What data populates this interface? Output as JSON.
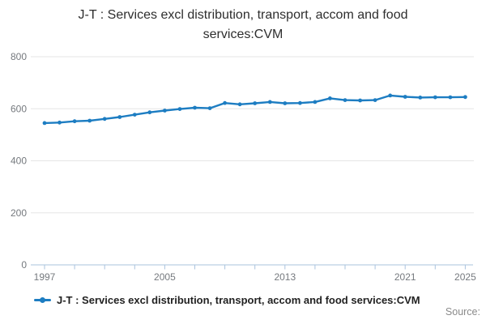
{
  "title": {
    "line1": "J-T : Services excl distribution, transport, accom and food",
    "line2": "services:CVM"
  },
  "legend": {
    "label": "J-T : Services excl distribution, transport, accom and food services:CVM"
  },
  "source_label": "Source:",
  "colors": {
    "line": "#1d7dc2",
    "grid": "#e6e6e6",
    "axis": "#aac3de",
    "tick_text": "#75797e",
    "title_text": "#2e2e2e",
    "legend_text": "#222222",
    "source_text": "#8a8a8a"
  },
  "chart_data": {
    "type": "line",
    "title": "J-T : Services excl distribution, transport, accom and food services:CVM",
    "x": [
      1997,
      1998,
      1999,
      2000,
      2001,
      2002,
      2003,
      2004,
      2005,
      2006,
      2007,
      2008,
      2009,
      2010,
      2011,
      2012,
      2013,
      2014,
      2015,
      2016,
      2017,
      2018,
      2019,
      2020,
      2021,
      2022,
      2023,
      2024,
      2025
    ],
    "series": [
      {
        "name": "J-T : Services excl distribution, transport, accom and food services:CVM",
        "values": [
          545,
          547,
          552,
          554,
          561,
          568,
          577,
          586,
          593,
          599,
          604,
          602,
          622,
          617,
          621,
          626,
          621,
          622,
          626,
          640,
          633,
          632,
          633,
          651,
          646,
          643,
          644,
          644,
          645
        ]
      }
    ],
    "xlabel": "",
    "ylabel": "",
    "ylim": [
      0,
      800
    ],
    "xlim": [
      1997,
      2025
    ],
    "y_ticks": [
      0,
      200,
      400,
      600,
      800
    ],
    "x_tick_marks": [
      1997,
      1999,
      2001,
      2003,
      2005,
      2007,
      2009,
      2011,
      2013,
      2015,
      2017,
      2019,
      2021,
      2023,
      2025
    ],
    "x_tick_labels": [
      1997,
      2005,
      2013,
      2021,
      2025
    ],
    "grid": "horizontal",
    "legend_position": "bottom-left",
    "marker": "circle"
  }
}
